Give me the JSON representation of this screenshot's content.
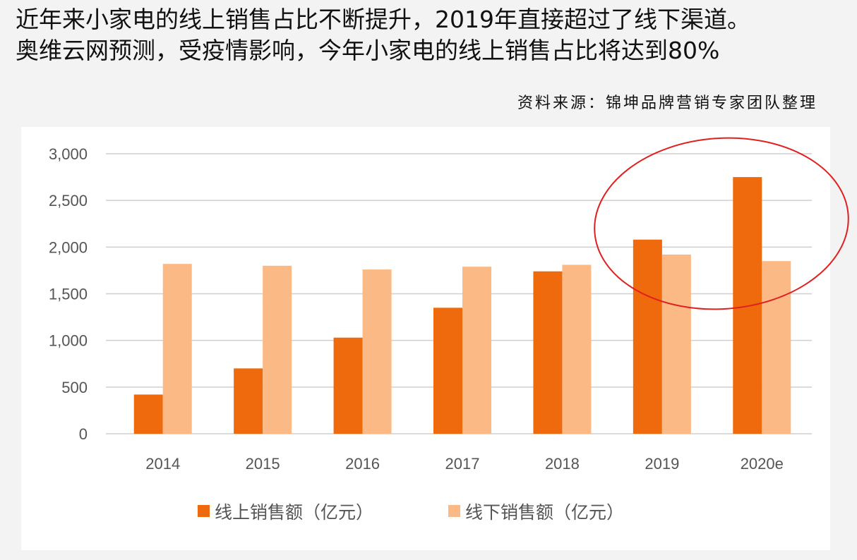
{
  "headline": {
    "line1": "近年来小家电的线上销售占比不断提升，2019年直接超过了线下渠道。",
    "line2": "奥维云网预测，受疫情影响，今年小家电的线上销售占比将达到80%"
  },
  "source": "资料来源：锦坤品牌营销专家团队整理",
  "chart_data": {
    "type": "bar",
    "title": "",
    "xlabel": "",
    "ylabel": "",
    "categories": [
      "2014",
      "2015",
      "2016",
      "2017",
      "2018",
      "2019",
      "2020e"
    ],
    "series": [
      {
        "name": "线上销售额（亿元）",
        "color": "#ee6a0c",
        "values": [
          420,
          700,
          1030,
          1350,
          1740,
          2080,
          2750
        ]
      },
      {
        "name": "线下销售额（亿元）",
        "color": "#fbb985",
        "values": [
          1820,
          1800,
          1760,
          1790,
          1810,
          1920,
          1850
        ]
      }
    ],
    "ylim": [
      0,
      3000
    ],
    "yticks": [
      0,
      500,
      1000,
      1500,
      2000,
      2500,
      3000
    ],
    "ytick_labels": [
      "0",
      "500",
      "1,000",
      "1,500",
      "2,000",
      "2,500",
      "3,000"
    ],
    "grid": true,
    "legend_position": "bottom",
    "annotation": {
      "type": "red-ellipse",
      "highlights": [
        "2019",
        "2020e"
      ],
      "color": "#e02020"
    }
  }
}
